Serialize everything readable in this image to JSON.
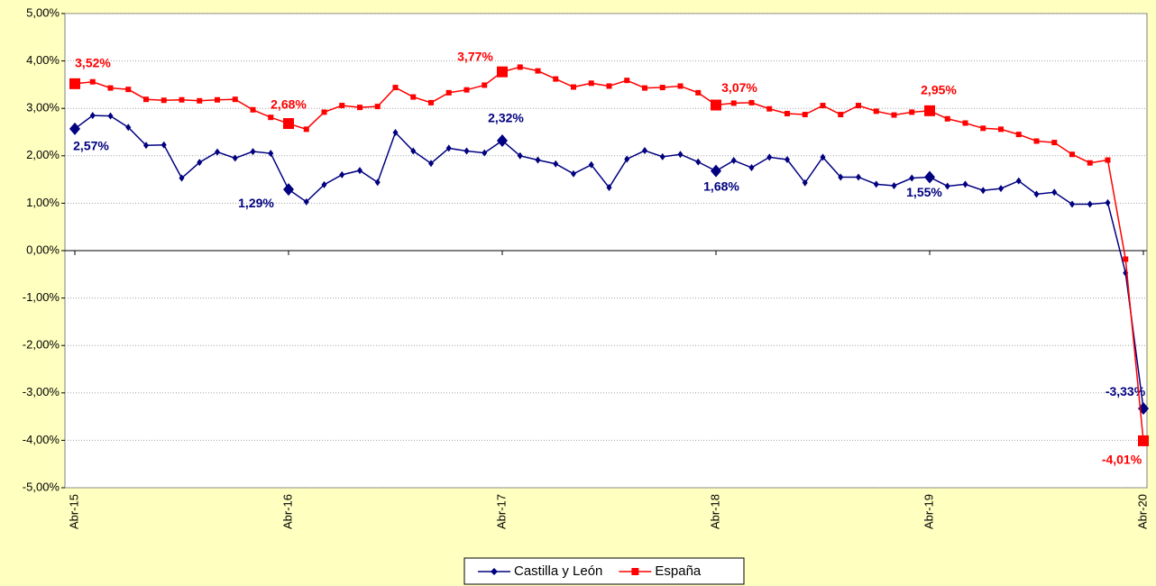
{
  "chart_data": {
    "type": "line",
    "categories": [
      "Abr-15",
      null,
      null,
      null,
      null,
      null,
      null,
      null,
      null,
      null,
      null,
      null,
      "Abr-16",
      null,
      null,
      null,
      null,
      null,
      null,
      null,
      null,
      null,
      null,
      null,
      "Abr-17",
      null,
      null,
      null,
      null,
      null,
      null,
      null,
      null,
      null,
      null,
      null,
      "Abr-18",
      null,
      null,
      null,
      null,
      null,
      null,
      null,
      null,
      null,
      null,
      null,
      "Abr-19",
      null,
      null,
      null,
      null,
      null,
      null,
      null,
      null,
      null,
      null,
      null,
      "Abr-20"
    ],
    "ylim": [
      -5,
      5
    ],
    "yticks": [
      {
        "value": -5,
        "label": "-5,00%"
      },
      {
        "value": -4,
        "label": "-4,00%"
      },
      {
        "value": -3,
        "label": "-3,00%"
      },
      {
        "value": -2,
        "label": "-2,00%"
      },
      {
        "value": -1,
        "label": "-1,00%"
      },
      {
        "value": 0,
        "label": "0,00%"
      },
      {
        "value": 1,
        "label": "1,00%"
      },
      {
        "value": 2,
        "label": "2,00%"
      },
      {
        "value": 3,
        "label": "3,00%"
      },
      {
        "value": 4,
        "label": "4,00%"
      },
      {
        "value": 5,
        "label": "5,00%"
      }
    ],
    "grid": true,
    "series": [
      {
        "name": "Castilla y León",
        "color": "#000080",
        "marker": "diamond",
        "values": [
          2.57,
          2.85,
          2.84,
          2.6,
          2.22,
          2.23,
          1.53,
          1.86,
          2.08,
          1.95,
          2.09,
          2.05,
          1.29,
          1.03,
          1.39,
          1.6,
          1.69,
          1.44,
          2.49,
          2.1,
          1.84,
          2.16,
          2.1,
          2.06,
          2.32,
          2.0,
          1.91,
          1.83,
          1.62,
          1.81,
          1.33,
          1.93,
          2.11,
          1.98,
          2.03,
          1.87,
          1.68,
          1.9,
          1.75,
          1.97,
          1.92,
          1.43,
          1.97,
          1.55,
          1.55,
          1.4,
          1.37,
          1.53,
          1.55,
          1.36,
          1.4,
          1.27,
          1.31,
          1.47,
          1.19,
          1.23,
          0.98,
          0.98,
          1.01,
          -0.47,
          -3.33
        ],
        "value_labels": [
          "2,57%",
          null,
          null,
          null,
          null,
          null,
          null,
          null,
          null,
          null,
          null,
          null,
          "1,29%",
          null,
          null,
          null,
          null,
          null,
          null,
          null,
          null,
          null,
          null,
          null,
          "2,32%",
          null,
          null,
          null,
          null,
          null,
          null,
          null,
          null,
          null,
          null,
          null,
          "1,68%",
          null,
          null,
          null,
          null,
          null,
          null,
          null,
          null,
          null,
          null,
          null,
          "1,55%",
          null,
          null,
          null,
          null,
          null,
          null,
          null,
          null,
          null,
          null,
          null,
          "-3,33%"
        ]
      },
      {
        "name": "España",
        "color": "#ff0000",
        "marker": "square",
        "values": [
          3.52,
          3.56,
          3.43,
          3.4,
          3.19,
          3.17,
          3.18,
          3.16,
          3.18,
          3.19,
          2.97,
          2.81,
          2.68,
          2.56,
          2.92,
          3.06,
          3.02,
          3.04,
          3.44,
          3.24,
          3.12,
          3.33,
          3.39,
          3.49,
          3.77,
          3.87,
          3.79,
          3.62,
          3.45,
          3.53,
          3.47,
          3.59,
          3.43,
          3.44,
          3.47,
          3.33,
          3.07,
          3.11,
          3.12,
          2.99,
          2.89,
          2.87,
          3.06,
          2.87,
          3.06,
          2.94,
          2.86,
          2.92,
          2.95,
          2.78,
          2.69,
          2.58,
          2.56,
          2.45,
          2.31,
          2.28,
          2.03,
          1.85,
          1.91,
          -0.18,
          -4.01
        ],
        "value_labels": [
          "3,52%",
          null,
          null,
          null,
          null,
          null,
          null,
          null,
          null,
          null,
          null,
          null,
          "2,68%",
          null,
          null,
          null,
          null,
          null,
          null,
          null,
          null,
          null,
          null,
          null,
          "3,77%",
          null,
          null,
          null,
          null,
          null,
          null,
          null,
          null,
          null,
          null,
          null,
          "3,07%",
          null,
          null,
          null,
          null,
          null,
          null,
          null,
          null,
          null,
          null,
          null,
          "2,95%",
          null,
          null,
          null,
          null,
          null,
          null,
          null,
          null,
          null,
          null,
          null,
          "-4,01%"
        ]
      }
    ]
  }
}
